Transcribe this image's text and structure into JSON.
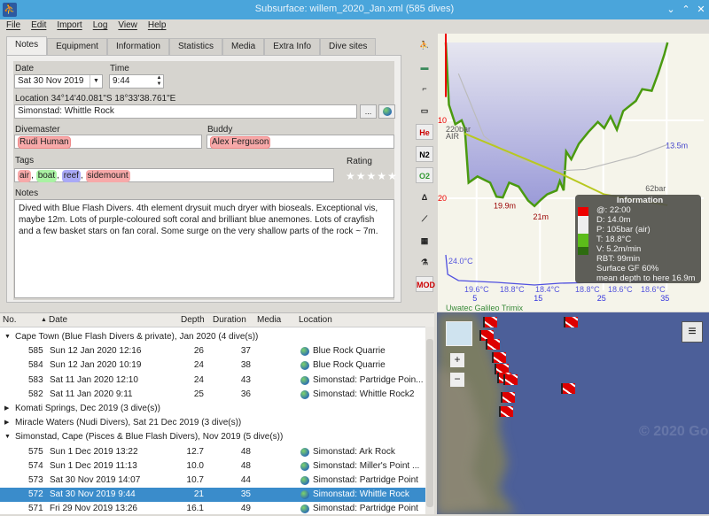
{
  "window": {
    "title": "Subsurface: willem_2020_Jan.xml (585 dives)"
  },
  "menu": [
    "File",
    "Edit",
    "Import",
    "Log",
    "View",
    "Help"
  ],
  "tabs": [
    "Notes",
    "Equipment",
    "Information",
    "Statistics",
    "Media",
    "Extra Info",
    "Dive sites"
  ],
  "notes": {
    "date_label": "Date",
    "date": "Sat 30 Nov 2019",
    "time_label": "Time",
    "time": "9:44",
    "location_label": "Location 34°14'40.081\"S 18°33'38.761\"E",
    "location": "Simonstad: Whittle Rock",
    "location_more": "...",
    "divemaster_label": "Divemaster",
    "divemaster": "Rudi Human",
    "buddy_label": "Buddy",
    "buddy": "Alex Ferguson",
    "tags_label": "Tags",
    "tags": [
      {
        "text": "air",
        "color": "#f7a9a9"
      },
      {
        "text": "boat",
        "color": "#a9f2a3"
      },
      {
        "text": "reef",
        "color": "#a9a9f7"
      },
      {
        "text": "sidemount",
        "color": "#f7a9a9"
      }
    ],
    "rating_label": "Rating",
    "rating": 0,
    "rating_max": 5,
    "notes_label": "Notes",
    "notes_text": "Dived with Blue Flash Divers. 4th element drysuit much dryer with bioseals. Exceptional vis, maybe 12m. Lots of purple-coloured soft coral and brilliant blue anemones. Lots of crayfish and a few basket stars on fan coral. Some surge on the very shallow parts of the rock ~ 7m."
  },
  "profile_toolbar": [
    "dive-computer-icon",
    "ceiling-icon",
    "deco-icon",
    "tissue-icon",
    "He",
    "N2",
    "O2",
    "delta-icon",
    "line-icon",
    "heatmap-icon",
    "gas-icon",
    "MOD"
  ],
  "profile": {
    "depth_ticks": [
      "10",
      "20"
    ],
    "time_ticks": [
      "5",
      "15",
      "25",
      "35"
    ],
    "max_labels": [
      "19.9m",
      "21m"
    ],
    "mean_depth_label": "13.5m",
    "start_pressure": "220bar",
    "gas": "AIR",
    "end_pressure": "62bar",
    "temps": [
      "24.0°C",
      "19.6°C",
      "18.8°C",
      "18.4°C",
      "18.8°C",
      "18.6°C",
      "18.6°C"
    ],
    "computer": "Uwatec Galileo Trimix",
    "samples": [
      [
        0,
        0
      ],
      [
        0.5,
        8
      ],
      [
        1.5,
        10.5
      ],
      [
        2.5,
        10
      ],
      [
        3,
        11
      ],
      [
        3.6,
        18
      ],
      [
        5,
        17.2
      ],
      [
        7,
        18
      ],
      [
        8,
        19.8
      ],
      [
        9,
        19.9
      ],
      [
        10,
        18
      ],
      [
        11.5,
        18.5
      ],
      [
        13,
        20.3
      ],
      [
        14,
        21
      ],
      [
        15,
        20.2
      ],
      [
        16,
        19.5
      ],
      [
        17.5,
        19
      ],
      [
        18,
        17.8
      ],
      [
        18.6,
        19
      ],
      [
        19,
        14
      ],
      [
        19.8,
        15
      ],
      [
        21,
        13
      ],
      [
        22.5,
        11.5
      ],
      [
        24,
        10.2
      ],
      [
        25,
        11
      ],
      [
        26,
        9.5
      ],
      [
        27,
        11.2
      ],
      [
        28,
        8.8
      ],
      [
        30,
        7.5
      ],
      [
        31,
        6
      ],
      [
        32.5,
        6.2
      ],
      [
        33.5,
        4
      ],
      [
        34.5,
        1.5
      ],
      [
        35,
        0
      ]
    ],
    "info": {
      "title": "Information",
      "lines": [
        "@: 22:00",
        "D: 14.0m",
        "P: 105bar (air)",
        "T: 18.8°C",
        "V: 5.2m/min",
        "RBT: 99min",
        "Surface GF 60%",
        "mean depth to here 16.9m"
      ]
    }
  },
  "dive_list": {
    "columns": [
      "No.",
      "Date",
      "Depth",
      "Duration",
      "Media",
      "Location"
    ],
    "rows": [
      {
        "type": "trip",
        "label": "Cape Town (Blue Flash Divers & private), Jan 2020 (4 dive(s))",
        "expanded": true
      },
      {
        "type": "dive",
        "no": "585",
        "date": "Sun 12 Jan 2020 12:16",
        "depth": "26",
        "duration": "37",
        "location": "Blue Rock Quarrie"
      },
      {
        "type": "dive",
        "no": "584",
        "date": "Sun 12 Jan 2020 10:19",
        "depth": "24",
        "duration": "38",
        "location": "Blue Rock Quarrie"
      },
      {
        "type": "dive",
        "no": "583",
        "date": "Sat 11 Jan 2020 12:10",
        "depth": "24",
        "duration": "43",
        "location": "Simonstad: Partridge Poin..."
      },
      {
        "type": "dive",
        "no": "582",
        "date": "Sat 11 Jan 2020 9:11",
        "depth": "25",
        "duration": "36",
        "location": "Simonstad: Whittle Rock2"
      },
      {
        "type": "trip",
        "label": "Komati Springs, Dec 2019 (3 dive(s))",
        "expanded": false
      },
      {
        "type": "trip",
        "label": "Miracle Waters (Nudi Divers), Sat 21 Dec 2019 (3 dive(s))",
        "expanded": false
      },
      {
        "type": "trip",
        "label": "Simonstad, Cape (Pisces & Blue Flash Divers), Nov 2019 (5 dive(s))",
        "expanded": true
      },
      {
        "type": "dive",
        "no": "575",
        "date": "Sun 1 Dec 2019 13:22",
        "depth": "12.7",
        "duration": "48",
        "location": "Simonstad: Ark Rock"
      },
      {
        "type": "dive",
        "no": "574",
        "date": "Sun 1 Dec 2019 11:13",
        "depth": "10.0",
        "duration": "48",
        "location": "Simonstad: Miller's Point ..."
      },
      {
        "type": "dive",
        "no": "573",
        "date": "Sat 30 Nov 2019 14:07",
        "depth": "10.7",
        "duration": "44",
        "location": "Simonstad: Partridge Point"
      },
      {
        "type": "dive",
        "no": "572",
        "date": "Sat 30 Nov 2019 9:44",
        "depth": "21",
        "duration": "35",
        "location": "Simonstad: Whittle Rock",
        "selected": true
      },
      {
        "type": "dive",
        "no": "571",
        "date": "Fri 29 Nov 2019 13:26",
        "depth": "16.1",
        "duration": "49",
        "location": "Simonstad: Partridge Point"
      }
    ]
  },
  "map": {
    "zoom_in": "+",
    "zoom_out": "−",
    "menu_icon": "hamburger-icon",
    "watermark": "© 2020 Go"
  }
}
